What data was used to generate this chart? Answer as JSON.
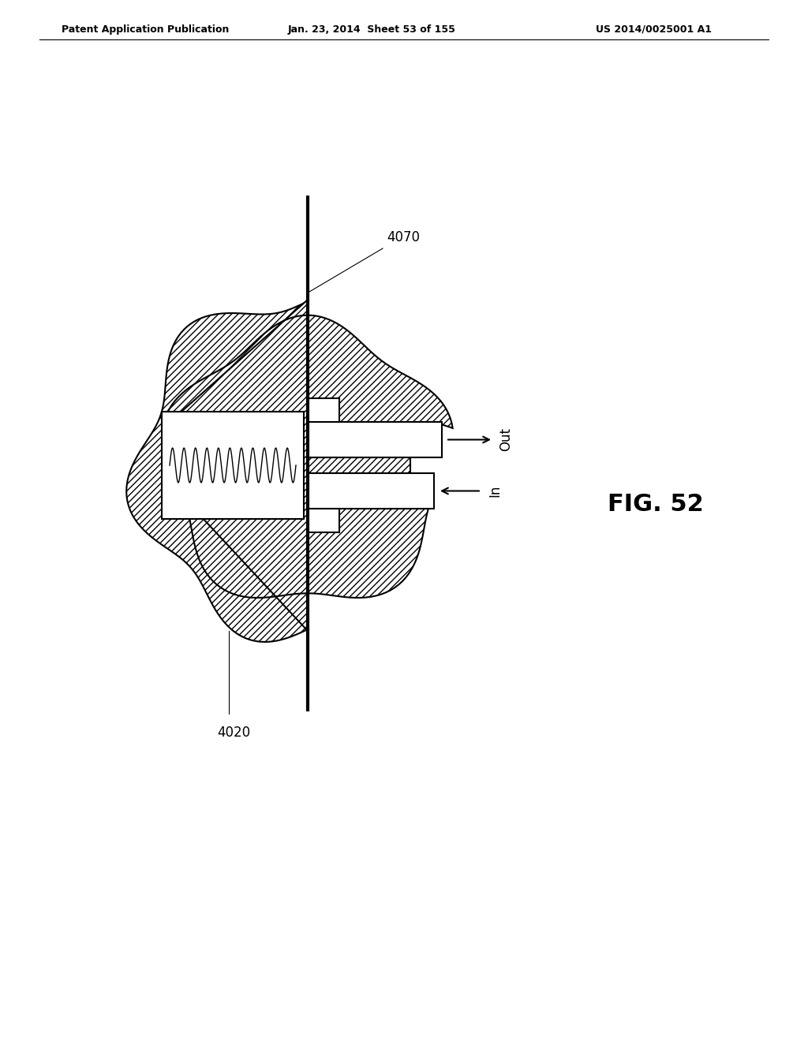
{
  "title_line1": "Patent Application Publication",
  "title_line2": "Jan. 23, 2014  Sheet 53 of 155",
  "title_line3": "US 2014/0025001 A1",
  "fig_label": "FIG. 52",
  "label_4070": "4070",
  "label_4020": "4020",
  "label_out": "Out",
  "label_in": "In",
  "bg_color": "#ffffff",
  "line_color": "#000000"
}
